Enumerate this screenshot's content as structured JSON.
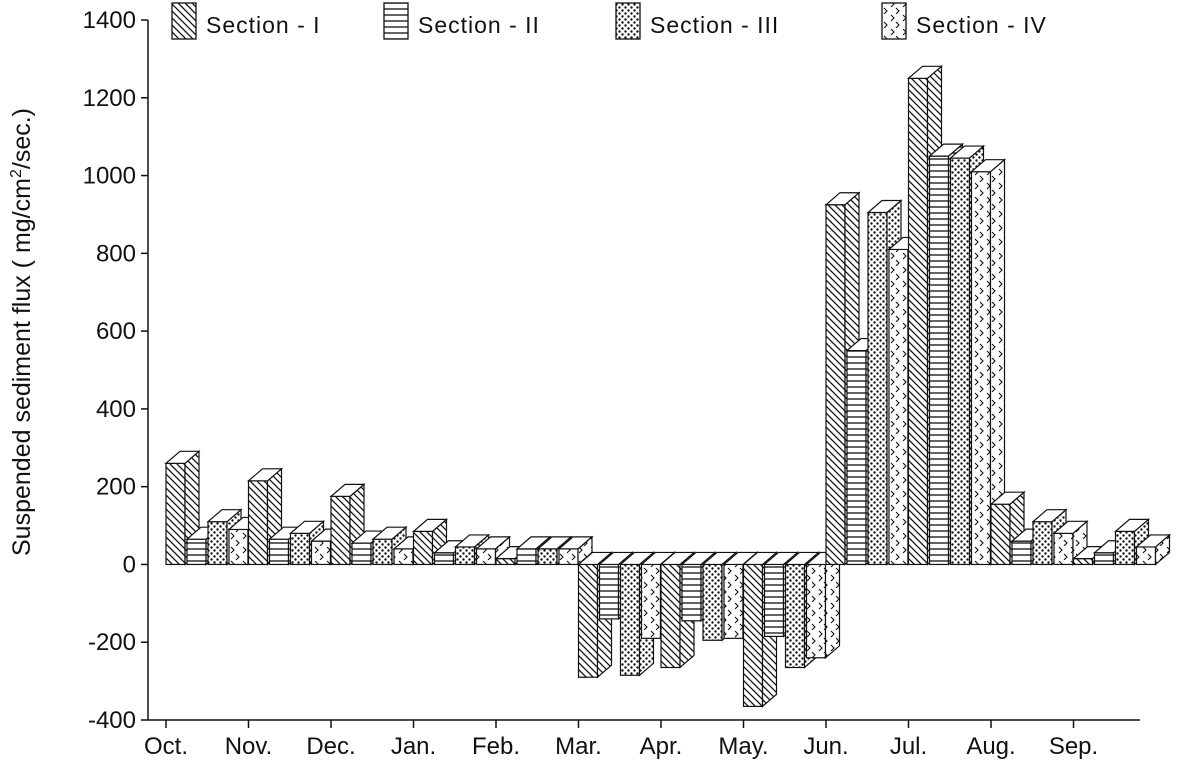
{
  "chart_data": {
    "type": "bar",
    "categories": [
      "Oct.",
      "Nov.",
      "Dec.",
      "Jan.",
      "Feb.",
      "Mar.",
      "Apr.",
      "May.",
      "Jun.",
      "Jul.",
      "Aug.",
      "Sep."
    ],
    "ylabel_main": "Suspended sediment flux ( mg/cm",
    "ylabel_sup": "2",
    "ylabel_end": "/sec.)",
    "xlabel": "",
    "ylim": [
      -400,
      1400
    ],
    "yticks": [
      -400,
      -200,
      0,
      200,
      400,
      600,
      800,
      1000,
      1200,
      1400
    ],
    "ytick_labels": [
      "-400",
      "-200",
      "0",
      "200",
      "400",
      "600",
      "800",
      "1000",
      "1200",
      "1400"
    ],
    "legend_position": "top",
    "grid": false,
    "series": [
      {
        "name": "Section - I",
        "pattern": "diagonal",
        "values": [
          260,
          215,
          175,
          85,
          15,
          -290,
          -265,
          -365,
          925,
          1250,
          155,
          15
        ]
      },
      {
        "name": "Section - II",
        "pattern": "horizontal",
        "values": [
          65,
          65,
          55,
          30,
          40,
          -140,
          -145,
          -185,
          550,
          1050,
          60,
          30
        ]
      },
      {
        "name": "Section - III",
        "pattern": "dots",
        "values": [
          110,
          80,
          65,
          45,
          40,
          -285,
          -195,
          -265,
          905,
          1045,
          110,
          85
        ]
      },
      {
        "name": "Section - IV",
        "pattern": "chevron",
        "values": [
          90,
          60,
          40,
          40,
          40,
          -190,
          -190,
          -240,
          810,
          1010,
          80,
          45
        ]
      }
    ]
  }
}
